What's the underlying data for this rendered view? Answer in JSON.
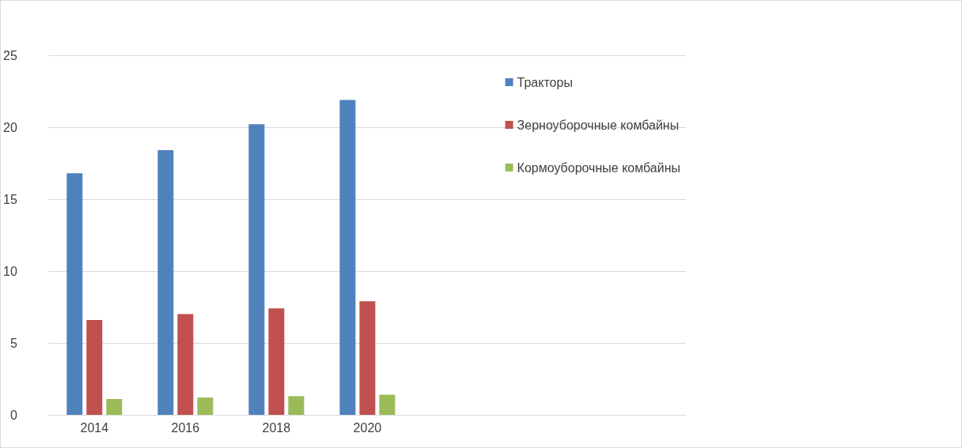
{
  "chart_data": {
    "type": "bar",
    "categories": [
      "2014",
      "2016",
      "2018",
      "2020",
      null,
      null,
      null
    ],
    "series": [
      {
        "name": "Тракторы",
        "color": "#4f81bd",
        "values": [
          16.8,
          18.4,
          20.2,
          21.9,
          null,
          null,
          null
        ]
      },
      {
        "name": "Зерноуборочные комбайны",
        "color": "#c0504d",
        "values": [
          6.6,
          7.0,
          7.4,
          7.9,
          null,
          null,
          null
        ]
      },
      {
        "name": "Кормоуборочные комбайны",
        "color": "#9bbb59",
        "values": [
          1.1,
          1.2,
          1.3,
          1.4,
          null,
          null,
          null
        ]
      }
    ],
    "ylim": [
      0,
      25
    ],
    "yticks": [
      0,
      5,
      10,
      15,
      20,
      25
    ],
    "grid": "y",
    "legend": "top right"
  }
}
